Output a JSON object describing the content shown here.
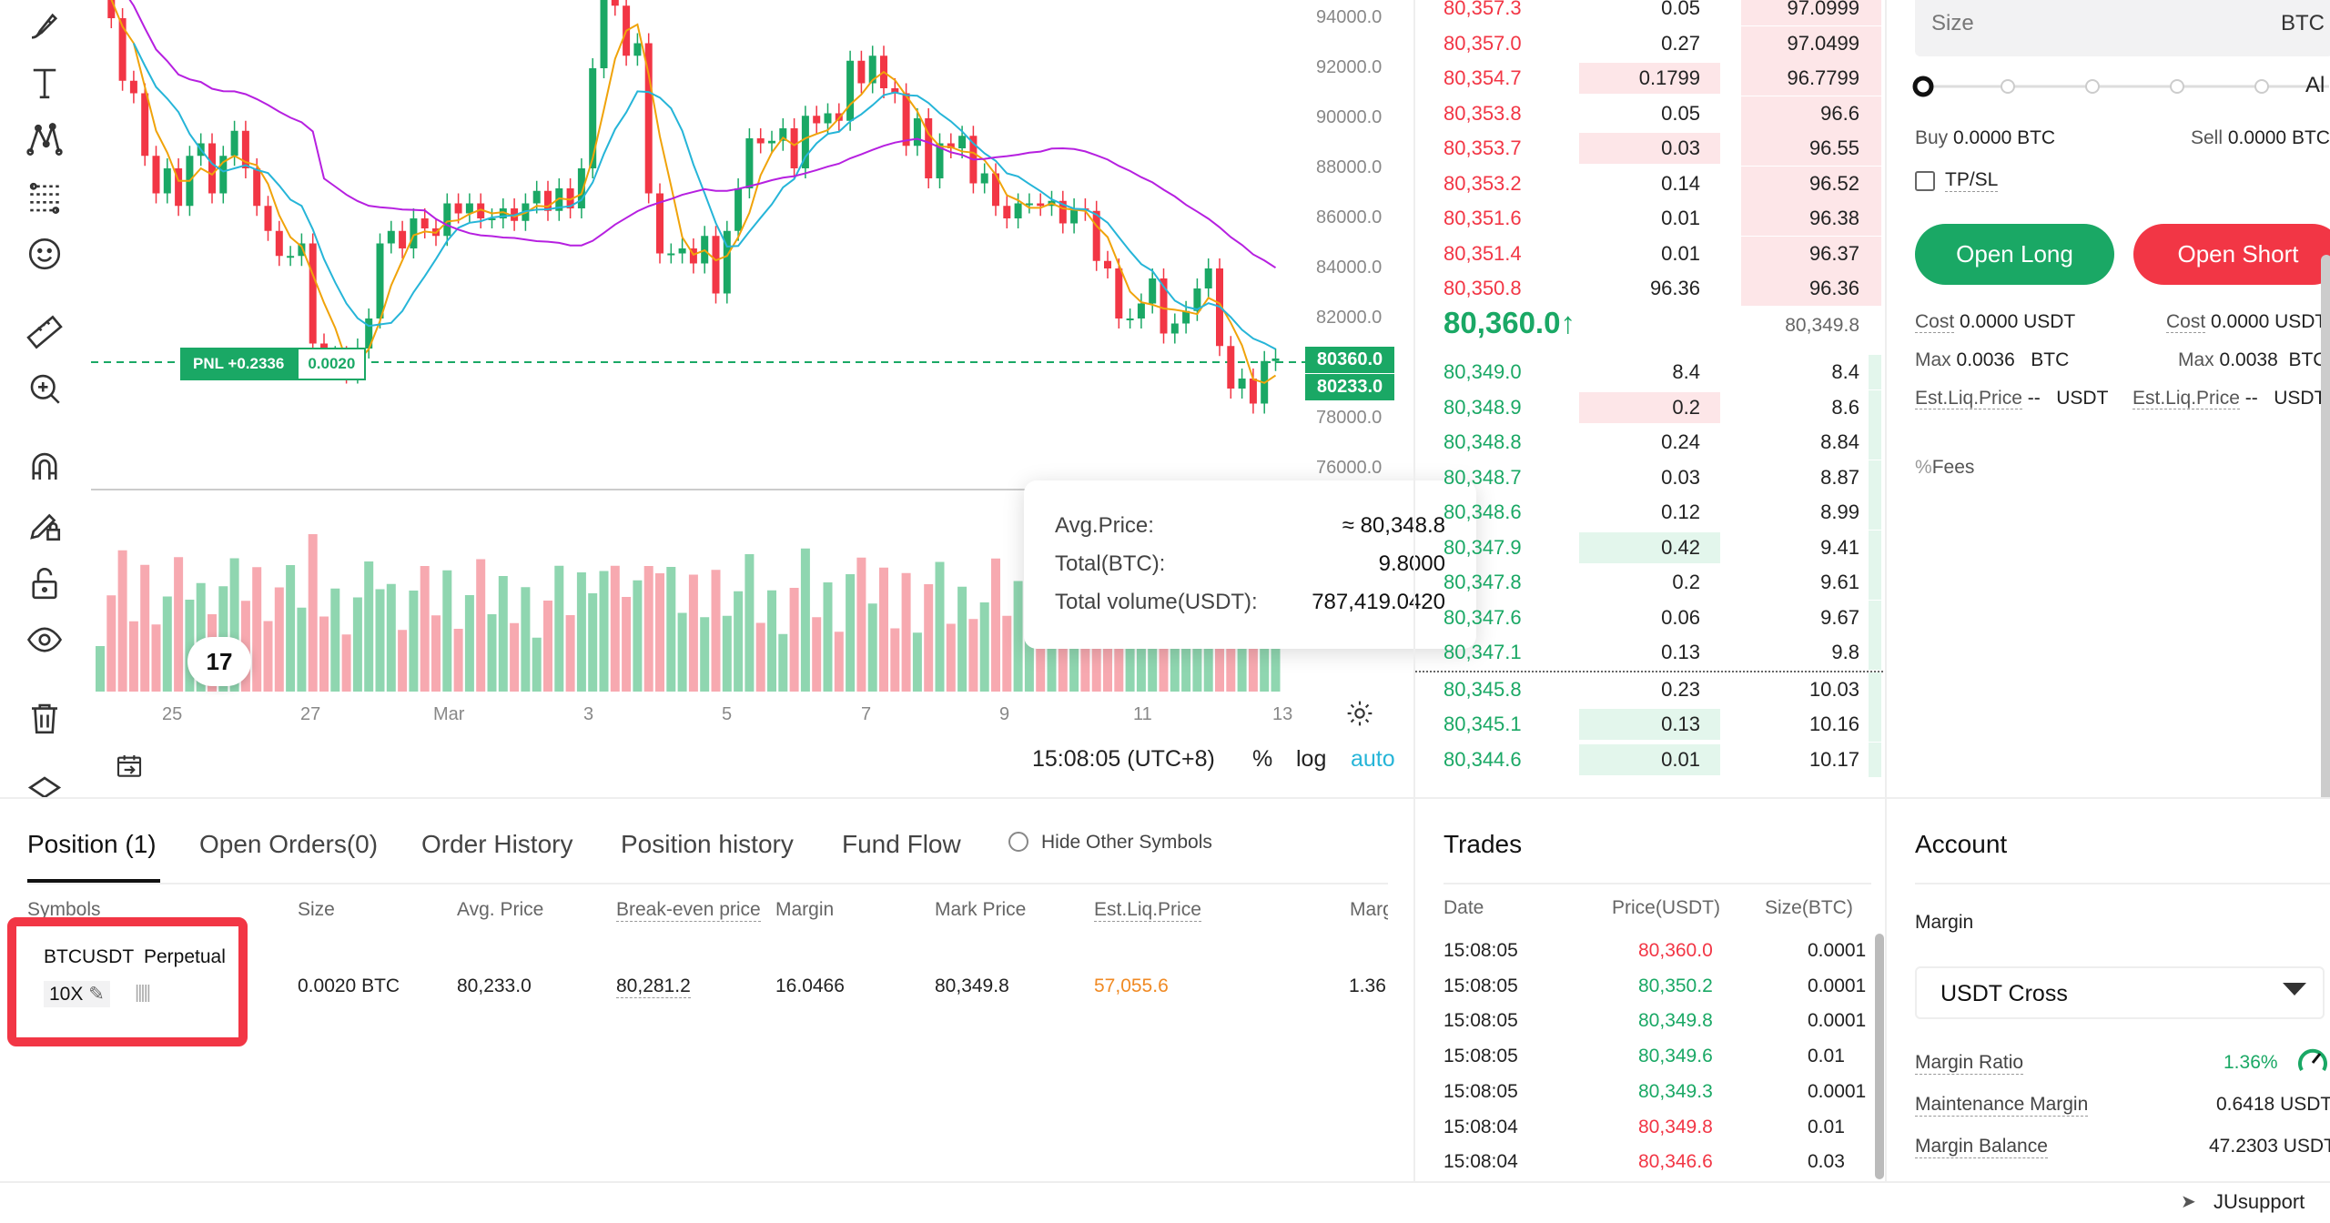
{
  "chart": {
    "y_ticks": [
      "94000.0",
      "92000.0",
      "90000.0",
      "88000.0",
      "86000.0",
      "84000.0",
      "82000.0",
      "78000.0",
      "76000.0"
    ],
    "x_ticks": [
      "25",
      "27",
      "Mar",
      "3",
      "5",
      "7",
      "9",
      "11",
      "13"
    ],
    "price_tag_current": "80360.0",
    "price_tag_entry": "80233.0",
    "pnl_label": "PNL +0.2336",
    "pnl_value": "0.0020",
    "tooltip": {
      "avg_label": "Avg.Price:",
      "avg_value": "≈ 80,348.8",
      "total_label": "Total(BTC):",
      "total_value": "9.8000",
      "vol_label": "Total volume(USDT):",
      "vol_value": "787,419.0420"
    },
    "time": "15:08:05 (UTC+8)",
    "percent": "%",
    "log": "log",
    "auto": "auto",
    "tv_logo": "17"
  },
  "orderbook": {
    "asks": [
      {
        "p": "80,357.3",
        "s": "0.05",
        "t": "97.0999"
      },
      {
        "p": "80,357.0",
        "s": "0.27",
        "t": "97.0499"
      },
      {
        "p": "80,354.7",
        "s": "0.1799",
        "t": "96.7799"
      },
      {
        "p": "80,353.8",
        "s": "0.05",
        "t": "96.6"
      },
      {
        "p": "80,353.7",
        "s": "0.03",
        "t": "96.55"
      },
      {
        "p": "80,353.2",
        "s": "0.14",
        "t": "96.52"
      },
      {
        "p": "80,351.6",
        "s": "0.01",
        "t": "96.38"
      },
      {
        "p": "80,351.4",
        "s": "0.01",
        "t": "96.37"
      },
      {
        "p": "80,350.8",
        "s": "96.36",
        "t": "96.36"
      }
    ],
    "last_price": "80,360.0",
    "arrow": "↑",
    "mark_price": "80,349.8",
    "bids": [
      {
        "p": "80,349.0",
        "s": "8.4",
        "t": "8.4"
      },
      {
        "p": "80,348.9",
        "s": "0.2",
        "t": "8.6"
      },
      {
        "p": "80,348.8",
        "s": "0.24",
        "t": "8.84"
      },
      {
        "p": "80,348.7",
        "s": "0.03",
        "t": "8.87"
      },
      {
        "p": "80,348.6",
        "s": "0.12",
        "t": "8.99"
      },
      {
        "p": "80,347.9",
        "s": "0.42",
        "t": "9.41"
      },
      {
        "p": "80,347.8",
        "s": "0.2",
        "t": "9.61"
      },
      {
        "p": "80,347.6",
        "s": "0.06",
        "t": "9.67"
      },
      {
        "p": "80,347.1",
        "s": "0.13",
        "t": "9.8"
      },
      {
        "p": "80,345.8",
        "s": "0.23",
        "t": "10.03"
      },
      {
        "p": "80,345.1",
        "s": "0.13",
        "t": "10.16"
      },
      {
        "p": "80,344.6",
        "s": "0.01",
        "t": "10.17"
      }
    ]
  },
  "order_panel": {
    "size_placeholder": "Size",
    "size_unit": "BTC",
    "slider_end": "Al",
    "buy_label": "Buy",
    "buy_value": "0.0000 BTC",
    "sell_label": "Sell",
    "sell_value": "0.0000 BTC",
    "tpsl": "TP/SL",
    "open_long": "Open Long",
    "open_short": "Open Short",
    "cost_label": "Cost",
    "cost_long": "0.0000 USDT",
    "cost_short": "0.0000 USDT",
    "max_label": "Max",
    "max_long": "0.0036",
    "max_long_unit": "BTC",
    "max_short": "0.0038",
    "max_short_unit": "BTC",
    "liq_label": "Est.Liq.Price",
    "liq_value": "--",
    "liq_unit": "USDT",
    "fees": "Fees"
  },
  "tabs": [
    {
      "label": "Position (1)"
    },
    {
      "label": "Open Orders(0)"
    },
    {
      "label": "Order History"
    },
    {
      "label": "Position history"
    },
    {
      "label": "Fund Flow"
    }
  ],
  "hide_other": "Hide Other Symbols",
  "position_headers": [
    "Symbols",
    "Size",
    "Avg. Price",
    "Break-even price",
    "Margin",
    "Mark Price",
    "Est.Liq.Price",
    "Marg"
  ],
  "position_row": {
    "symbol": "BTCUSDT",
    "type": "Perpetual",
    "leverage": "10X",
    "size": "0.0020 BTC",
    "avg": "80,233.0",
    "breakeven": "80,281.2",
    "margin": "16.0466",
    "mark": "80,349.8",
    "liq": "57,055.6",
    "marg": "1.36"
  },
  "trades": {
    "title": "Trades",
    "headers": [
      "Date",
      "Price(USDT)",
      "Size(BTC)"
    ],
    "rows": [
      {
        "d": "15:08:05",
        "p": "80,360.0",
        "s": "0.0001",
        "c": "red"
      },
      {
        "d": "15:08:05",
        "p": "80,350.2",
        "s": "0.0001",
        "c": "green"
      },
      {
        "d": "15:08:05",
        "p": "80,349.8",
        "s": "0.0001",
        "c": "green"
      },
      {
        "d": "15:08:05",
        "p": "80,349.6",
        "s": "0.01",
        "c": "green"
      },
      {
        "d": "15:08:05",
        "p": "80,349.3",
        "s": "0.0001",
        "c": "green"
      },
      {
        "d": "15:08:04",
        "p": "80,349.8",
        "s": "0.01",
        "c": "red"
      },
      {
        "d": "15:08:04",
        "p": "80,346.6",
        "s": "0.03",
        "c": "red"
      }
    ]
  },
  "account": {
    "title": "Account",
    "margin_label": "Margin",
    "margin_mode": "USDT Cross",
    "ratio_label": "Margin Ratio",
    "ratio_value": "1.36%",
    "maint_label": "Maintenance Margin",
    "maint_value": "0.6418 USDT",
    "bal_label": "Margin Balance",
    "bal_value": "47.2303 USDT"
  },
  "support": "JUsupport",
  "colors": {
    "green": "#1aa865",
    "red": "#f23645",
    "ma_purple": "#b620e0",
    "ma_cyan": "#26b5d8",
    "ma_orange": "#f0a30a"
  }
}
